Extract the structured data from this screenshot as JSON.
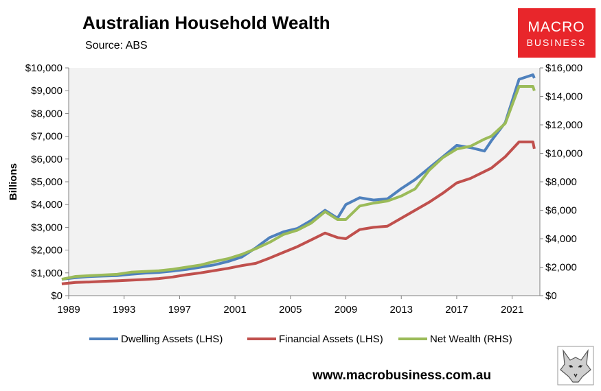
{
  "header": {
    "title": "Australian Household Wealth",
    "subtitle": "Source: ABS",
    "url": "www.macrobusiness.com.au"
  },
  "logo": {
    "line1": "MACRO",
    "line2": "BUSINESS",
    "bg_color": "#e8262b",
    "mascot_icon": "wolf-icon"
  },
  "chart_data": {
    "type": "line",
    "title": "Australian Household Wealth",
    "subtitle": "Source: ABS",
    "ylabel_left": "Billions",
    "ylabel_right": "",
    "xlabel": "",
    "xlim": [
      1989,
      2023
    ],
    "x_ticks": [
      "1989",
      "1993",
      "1997",
      "2001",
      "2005",
      "2009",
      "2013",
      "2017",
      "2021"
    ],
    "y_left_lim": [
      0,
      10000
    ],
    "y_left_ticks": [
      "$0",
      "$1,000",
      "$2,000",
      "$3,000",
      "$4,000",
      "$5,000",
      "$6,000",
      "$7,000",
      "$8,000",
      "$9,000",
      "$10,000"
    ],
    "y_right_lim": [
      0,
      16000
    ],
    "y_right_ticks": [
      "$0",
      "$2,000",
      "$4,000",
      "$6,000",
      "$8,000",
      "$10,000",
      "$12,000",
      "$14,000",
      "$16,000"
    ],
    "grid": false,
    "plot_bg": "#f2f2f2",
    "legend": "bottom",
    "series": [
      {
        "name": "Dwelling Assets (LHS)",
        "axis": "left",
        "color": "#4f81bd",
        "points": [
          [
            1988.5,
            720
          ],
          [
            1989.5,
            790
          ],
          [
            1990.5,
            840
          ],
          [
            1991.5,
            860
          ],
          [
            1992.5,
            880
          ],
          [
            1993.5,
            940
          ],
          [
            1994.5,
            990
          ],
          [
            1995.5,
            1020
          ],
          [
            1996.5,
            1080
          ],
          [
            1997.5,
            1150
          ],
          [
            1998.5,
            1250
          ],
          [
            1999.5,
            1350
          ],
          [
            2000.5,
            1500
          ],
          [
            2001.5,
            1700
          ],
          [
            2002.5,
            2100
          ],
          [
            2003.5,
            2550
          ],
          [
            2004.5,
            2800
          ],
          [
            2005.5,
            2950
          ],
          [
            2006.5,
            3300
          ],
          [
            2007.5,
            3750
          ],
          [
            2008.4,
            3400
          ],
          [
            2009.0,
            4000
          ],
          [
            2010.0,
            4300
          ],
          [
            2011.0,
            4200
          ],
          [
            2012.0,
            4250
          ],
          [
            2013.0,
            4700
          ],
          [
            2014.0,
            5100
          ],
          [
            2015.0,
            5600
          ],
          [
            2016.0,
            6100
          ],
          [
            2017.0,
            6600
          ],
          [
            2018.0,
            6500
          ],
          [
            2019.0,
            6350
          ],
          [
            2019.5,
            6800
          ],
          [
            2020.5,
            7600
          ],
          [
            2021.5,
            9500
          ],
          [
            2022.5,
            9700
          ],
          [
            2022.6,
            9550
          ]
        ]
      },
      {
        "name": "Financial Assets (LHS)",
        "axis": "left",
        "color": "#c0504d",
        "points": [
          [
            1988.5,
            520
          ],
          [
            1989.5,
            580
          ],
          [
            1990.5,
            600
          ],
          [
            1991.5,
            630
          ],
          [
            1992.5,
            650
          ],
          [
            1993.5,
            680
          ],
          [
            1994.5,
            710
          ],
          [
            1995.5,
            750
          ],
          [
            1996.5,
            820
          ],
          [
            1997.5,
            920
          ],
          [
            1998.5,
            1000
          ],
          [
            1999.5,
            1100
          ],
          [
            2000.5,
            1200
          ],
          [
            2001.5,
            1320
          ],
          [
            2002.5,
            1420
          ],
          [
            2003.5,
            1650
          ],
          [
            2004.5,
            1900
          ],
          [
            2005.5,
            2150
          ],
          [
            2006.5,
            2450
          ],
          [
            2007.5,
            2750
          ],
          [
            2008.4,
            2550
          ],
          [
            2009.0,
            2500
          ],
          [
            2010.0,
            2900
          ],
          [
            2011.0,
            3000
          ],
          [
            2012.0,
            3050
          ],
          [
            2013.0,
            3400
          ],
          [
            2014.0,
            3750
          ],
          [
            2015.0,
            4100
          ],
          [
            2016.0,
            4500
          ],
          [
            2017.0,
            4950
          ],
          [
            2018.0,
            5150
          ],
          [
            2019.0,
            5450
          ],
          [
            2019.5,
            5600
          ],
          [
            2020.5,
            6100
          ],
          [
            2021.5,
            6750
          ],
          [
            2022.5,
            6750
          ],
          [
            2022.6,
            6450
          ]
        ]
      },
      {
        "name": "Net Wealth (RHS)",
        "axis": "right",
        "color": "#9bbb59",
        "points": [
          [
            1988.5,
            1150
          ],
          [
            1989.5,
            1350
          ],
          [
            1990.5,
            1400
          ],
          [
            1991.5,
            1450
          ],
          [
            1992.5,
            1500
          ],
          [
            1993.5,
            1650
          ],
          [
            1994.5,
            1700
          ],
          [
            1995.5,
            1750
          ],
          [
            1996.5,
            1850
          ],
          [
            1997.5,
            2000
          ],
          [
            1998.5,
            2150
          ],
          [
            1999.5,
            2400
          ],
          [
            2000.5,
            2600
          ],
          [
            2001.5,
            2900
          ],
          [
            2002.5,
            3300
          ],
          [
            2003.5,
            3750
          ],
          [
            2004.5,
            4300
          ],
          [
            2005.5,
            4600
          ],
          [
            2006.5,
            5100
          ],
          [
            2007.5,
            5900
          ],
          [
            2008.4,
            5350
          ],
          [
            2009.0,
            5350
          ],
          [
            2010.0,
            6300
          ],
          [
            2011.0,
            6500
          ],
          [
            2012.0,
            6650
          ],
          [
            2013.0,
            7000
          ],
          [
            2014.0,
            7500
          ],
          [
            2015.0,
            8800
          ],
          [
            2016.0,
            9700
          ],
          [
            2017.0,
            10300
          ],
          [
            2018.0,
            10500
          ],
          [
            2019.0,
            11000
          ],
          [
            2019.5,
            11200
          ],
          [
            2020.5,
            12100
          ],
          [
            2021.5,
            14700
          ],
          [
            2022.5,
            14700
          ],
          [
            2022.6,
            14400
          ]
        ]
      }
    ]
  }
}
